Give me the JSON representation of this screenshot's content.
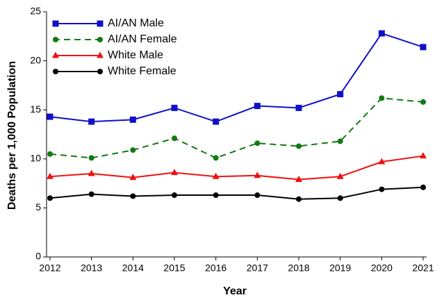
{
  "chart_data": {
    "type": "line",
    "x_label": "Year",
    "y_label": "Deaths per 1,000 Population",
    "categories": [
      "2012",
      "2013",
      "2014",
      "2015",
      "2016",
      "2017",
      "2018",
      "2019",
      "2020",
      "2021"
    ],
    "series": [
      {
        "name": "AI/AN Male",
        "color": "#1010c8",
        "marker": "square",
        "dash": false,
        "values": [
          14.3,
          13.8,
          14.0,
          15.2,
          13.8,
          15.4,
          15.2,
          16.6,
          22.8,
          21.4
        ]
      },
      {
        "name": "AI/AN Female",
        "color": "#127a12",
        "marker": "circle",
        "dash": true,
        "values": [
          10.5,
          10.1,
          10.9,
          12.1,
          10.1,
          11.6,
          11.3,
          11.8,
          16.2,
          15.8
        ]
      },
      {
        "name": "White Male",
        "color": "#f01010",
        "marker": "triangle",
        "dash": false,
        "values": [
          8.2,
          8.5,
          8.1,
          8.6,
          8.2,
          8.3,
          7.9,
          8.2,
          9.7,
          10.3
        ]
      },
      {
        "name": "White Female",
        "color": "#000000",
        "marker": "circle",
        "dash": false,
        "values": [
          6.0,
          6.4,
          6.2,
          6.3,
          6.3,
          6.3,
          5.9,
          6.0,
          6.9,
          7.1
        ]
      }
    ],
    "ylim": [
      0,
      25
    ],
    "yticks": [
      0,
      5,
      10,
      15,
      20,
      25
    ],
    "legend": "upper left",
    "grid": false
  }
}
